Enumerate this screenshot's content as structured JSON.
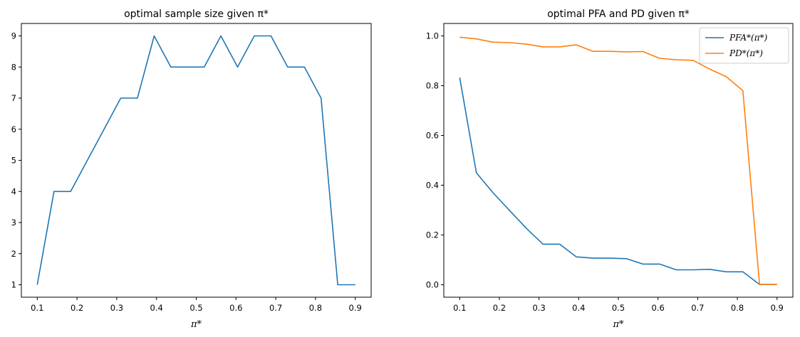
{
  "chart_data": [
    {
      "type": "line",
      "title": "optimal sample size given π*",
      "xlabel": "π*",
      "ylabel": "",
      "xlim": [
        0.06,
        0.94
      ],
      "ylim": [
        0.6,
        9.4
      ],
      "xticks": [
        "0.1",
        "0.2",
        "0.3",
        "0.4",
        "0.5",
        "0.6",
        "0.7",
        "0.8",
        "0.9"
      ],
      "yticks": [
        "1",
        "2",
        "3",
        "4",
        "5",
        "6",
        "7",
        "8",
        "9"
      ],
      "x": [
        0.1,
        0.142,
        0.184,
        0.226,
        0.268,
        0.31,
        0.352,
        0.394,
        0.436,
        0.478,
        0.52,
        0.562,
        0.604,
        0.646,
        0.688,
        0.73,
        0.772,
        0.814,
        0.856,
        0.9
      ],
      "series": [
        {
          "color": "#1f77b4",
          "values": [
            1,
            4,
            4,
            5,
            6,
            7,
            7,
            9,
            8,
            8,
            8,
            9,
            8,
            9,
            9,
            8,
            8,
            7,
            1,
            1
          ]
        }
      ],
      "grid": false
    },
    {
      "type": "line",
      "title": "optimal PFA and PD given π*",
      "xlabel": "π*",
      "ylabel": "",
      "xlim": [
        0.06,
        0.94
      ],
      "ylim": [
        -0.05,
        1.05
      ],
      "xticks": [
        "0.1",
        "0.2",
        "0.3",
        "0.4",
        "0.5",
        "0.6",
        "0.7",
        "0.8",
        "0.9"
      ],
      "yticks": [
        "0.0",
        "0.2",
        "0.4",
        "0.6",
        "0.8",
        "1.0"
      ],
      "x": [
        0.1,
        0.142,
        0.184,
        0.226,
        0.268,
        0.31,
        0.352,
        0.394,
        0.436,
        0.478,
        0.52,
        0.562,
        0.604,
        0.646,
        0.688,
        0.73,
        0.772,
        0.814,
        0.856,
        0.9
      ],
      "series": [
        {
          "name": "PFA*(π*)",
          "color": "#1f77b4",
          "values": [
            0.833,
            0.45,
            0.37,
            0.298,
            0.227,
            0.163,
            0.163,
            0.112,
            0.107,
            0.107,
            0.105,
            0.083,
            0.083,
            0.06,
            0.06,
            0.062,
            0.052,
            0.052,
            0.001,
            0.001
          ]
        },
        {
          "name": "PD*(π*)",
          "color": "#ff7f0e",
          "values": [
            0.995,
            0.988,
            0.975,
            0.973,
            0.967,
            0.956,
            0.956,
            0.964,
            0.938,
            0.938,
            0.936,
            0.937,
            0.91,
            0.904,
            0.902,
            0.867,
            0.836,
            0.78,
            0.001,
            0.001
          ]
        }
      ],
      "legend": "top-right",
      "grid": false
    }
  ]
}
